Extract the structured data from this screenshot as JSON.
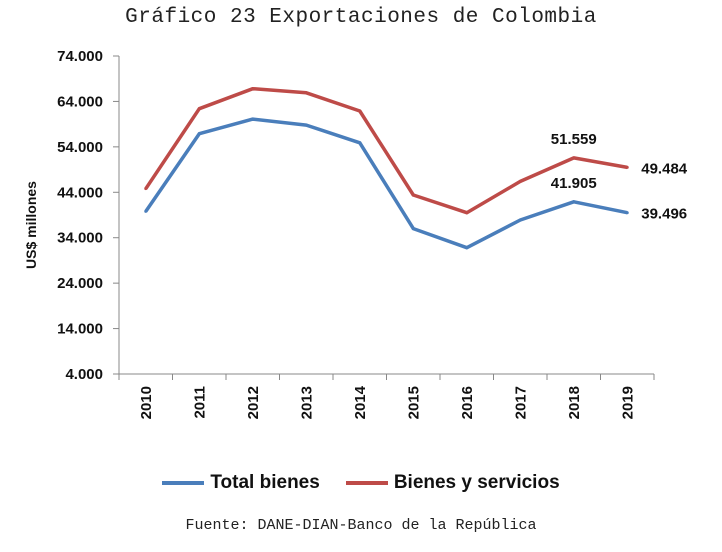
{
  "chart_data": {
    "type": "line",
    "title": "Gráfico 23 Exportaciones de Colombia",
    "ylabel": "US$ millones",
    "xlabel": "",
    "categories": [
      "2010",
      "2011",
      "2012",
      "2013",
      "2014",
      "2015",
      "2016",
      "2017",
      "2018",
      "2019"
    ],
    "ylim": [
      4000,
      74000
    ],
    "yticks": [
      4000,
      14000,
      24000,
      34000,
      44000,
      54000,
      64000,
      74000
    ],
    "ytick_labels": [
      "4.000",
      "14.000",
      "24.000",
      "34.000",
      "44.000",
      "54.000",
      "64.000",
      "74.000"
    ],
    "grid": false,
    "legend_position": "bottom",
    "series": [
      {
        "name": "Total bienes",
        "color": "#4A7EBB",
        "values": [
          39800,
          56900,
          60100,
          58800,
          54900,
          36000,
          31800,
          37900,
          41905,
          39496
        ],
        "data_labels": {
          "8": "41.905",
          "9": "39.496"
        }
      },
      {
        "name": "Bienes y servicios",
        "color": "#BE4B48",
        "values": [
          44800,
          62400,
          66800,
          65900,
          61900,
          43400,
          39500,
          46400,
          51559,
          49484
        ],
        "data_labels": {
          "8": "51.559",
          "9": "49.484"
        }
      }
    ],
    "source": "Fuente: DANE-DIAN-Banco de la República"
  }
}
